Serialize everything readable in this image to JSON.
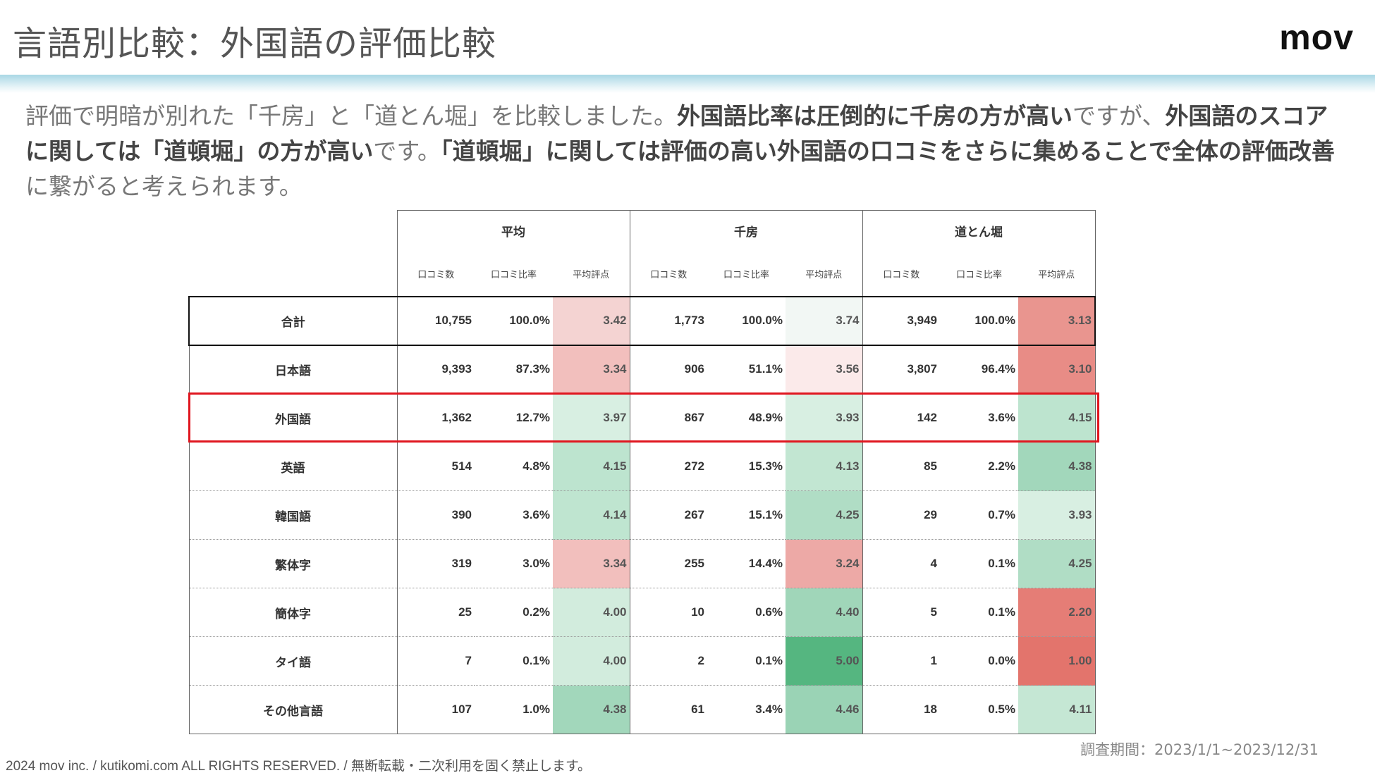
{
  "header": {
    "title": "言語別比較：外国語の評価比較",
    "logo": "mov"
  },
  "description": {
    "segments": [
      {
        "text": "評価で明暗が別れた「千房」と「道とん堀」を比較しました。",
        "bold": false
      },
      {
        "text": "外国語比率は圧倒的に千房の方が高い",
        "bold": true
      },
      {
        "text": "ですが、",
        "bold": false
      },
      {
        "text": "外国語のスコアに関しては「道頓堀」の方が高い",
        "bold": true
      },
      {
        "text": "です。",
        "bold": false
      },
      {
        "text": "「道頓堀」に関しては評価の高い外国語の口コミをさらに集めることで全体の評価改善",
        "bold": true
      },
      {
        "text": "に繋がると考えられます。",
        "bold": false
      }
    ]
  },
  "table": {
    "groups": [
      "平均",
      "千房",
      "道とん堀"
    ],
    "subheaders": [
      "口コミ数",
      "口コミ比率",
      "平均評点"
    ],
    "rows": [
      {
        "label": "合計",
        "cells": [
          "10,755",
          "100.0%",
          "3.42",
          "1,773",
          "100.0%",
          "3.74",
          "3,949",
          "100.0%",
          "3.13"
        ]
      },
      {
        "label": "日本語",
        "cells": [
          "9,393",
          "87.3%",
          "3.34",
          "906",
          "51.1%",
          "3.56",
          "3,807",
          "96.4%",
          "3.10"
        ]
      },
      {
        "label": "外国語",
        "cells": [
          "1,362",
          "12.7%",
          "3.97",
          "867",
          "48.9%",
          "3.93",
          "142",
          "3.6%",
          "4.15"
        ]
      },
      {
        "label": "英語",
        "cells": [
          "514",
          "4.8%",
          "4.15",
          "272",
          "15.3%",
          "4.13",
          "85",
          "2.2%",
          "4.38"
        ]
      },
      {
        "label": "韓国語",
        "cells": [
          "390",
          "3.6%",
          "4.14",
          "267",
          "15.1%",
          "4.25",
          "29",
          "0.7%",
          "3.93"
        ]
      },
      {
        "label": "繁体字",
        "cells": [
          "319",
          "3.0%",
          "3.34",
          "255",
          "14.4%",
          "3.24",
          "4",
          "0.1%",
          "4.25"
        ]
      },
      {
        "label": "簡体字",
        "cells": [
          "25",
          "0.2%",
          "4.00",
          "10",
          "0.6%",
          "4.40",
          "5",
          "0.1%",
          "2.20"
        ]
      },
      {
        "label": "タイ語",
        "cells": [
          "7",
          "0.1%",
          "4.00",
          "2",
          "0.1%",
          "5.00",
          "1",
          "0.0%",
          "1.00"
        ]
      },
      {
        "label": "その他言語",
        "cells": [
          "107",
          "1.0%",
          "4.38",
          "61",
          "3.4%",
          "4.46",
          "18",
          "0.5%",
          "4.11"
        ]
      }
    ],
    "score_colors": [
      [
        "#f4d3d2",
        "#f2f7f4",
        "#e9958f"
      ],
      [
        "#f2bfbd",
        "#fbeaea",
        "#e88c86"
      ],
      [
        "#d8efe2",
        "#d8efe2",
        "#bde4cf"
      ],
      [
        "#bde4cf",
        "#c2e6d2",
        "#a2d7bb"
      ],
      [
        "#bfe5d0",
        "#b0ddc5",
        "#d8efe2"
      ],
      [
        "#f2bfbd",
        "#eda9a6",
        "#b0ddc5"
      ],
      [
        "#d2ecdd",
        "#a0d6b9",
        "#e57d76"
      ],
      [
        "#d2ecdd",
        "#55b680",
        "#e3746c"
      ],
      [
        "#a2d7bb",
        "#9ad3b5",
        "#c5e7d4"
      ]
    ]
  },
  "period": "調査期間：2023/1/1~2023/12/31",
  "footer": "2024 mov inc. / kutikomi.com ALL RIGHTS RESERVED. / 無断転載・二次利用を固く禁止します。"
}
